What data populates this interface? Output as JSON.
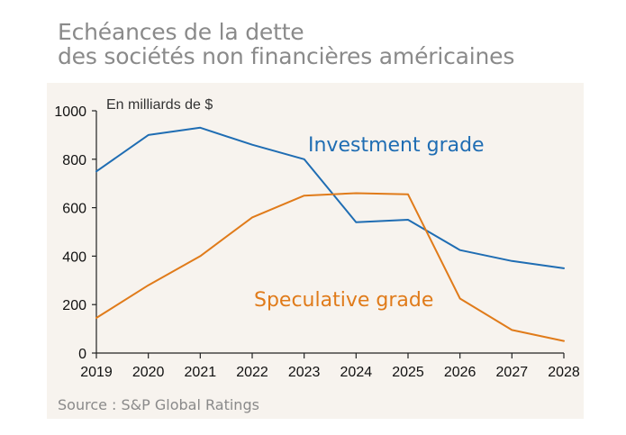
{
  "title": {
    "line1": "Echéances de la dette",
    "line2": "des sociétés non financières américaines"
  },
  "source": "Source : S&P Global Ratings",
  "chart_data": {
    "type": "line",
    "unit_label": "En milliards de $",
    "x": [
      "2019",
      "2020",
      "2021",
      "2022",
      "2023",
      "2024",
      "2025",
      "2026",
      "2027",
      "2028"
    ],
    "yticks": [
      "0",
      "200",
      "400",
      "600",
      "800",
      "1000"
    ],
    "ylim": [
      0,
      1000
    ],
    "grid": false,
    "series": [
      {
        "name": "Investment grade",
        "color": "#1f6db3",
        "values": [
          750,
          900,
          930,
          860,
          800,
          540,
          550,
          425,
          380,
          350
        ]
      },
      {
        "name": "Speculative grade",
        "color": "#e07b1a",
        "values": [
          145,
          280,
          400,
          560,
          650,
          660,
          655,
          225,
          95,
          50
        ]
      }
    ]
  }
}
